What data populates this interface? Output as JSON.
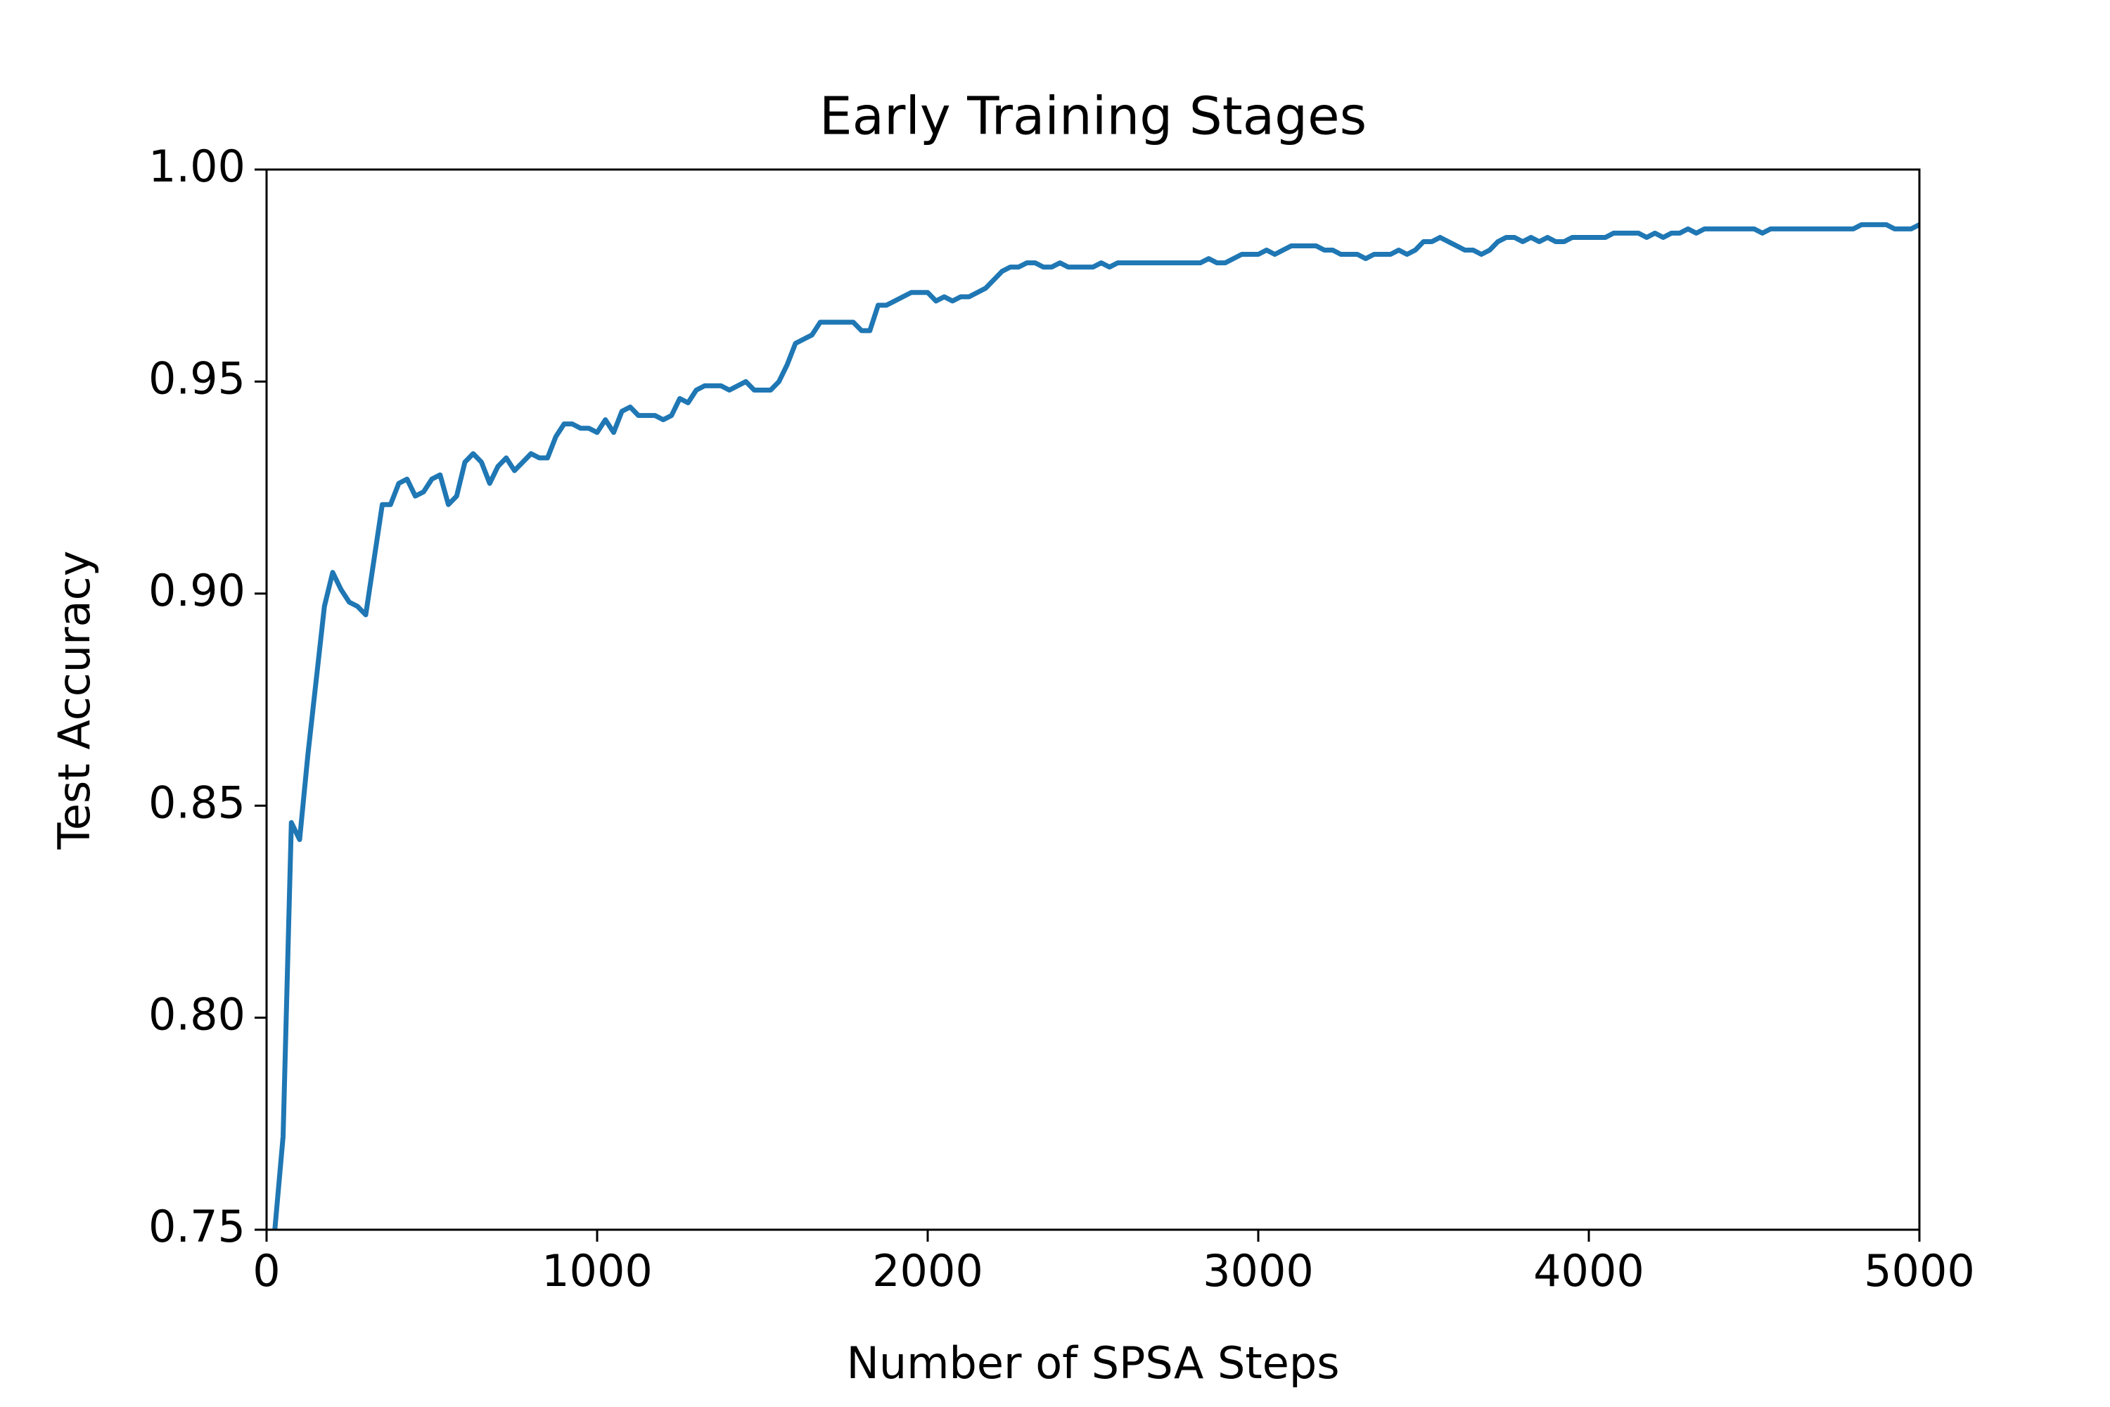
{
  "chart_data": {
    "type": "line",
    "title": "Early Training Stages",
    "x_label": "Number of SPSA Steps",
    "y_label": "Test Accuracy",
    "x": [
      25,
      50,
      75,
      100,
      125,
      175,
      200,
      225,
      250,
      275,
      300,
      350,
      375,
      400,
      425,
      450,
      475,
      500,
      525,
      550,
      575,
      600,
      625,
      650,
      675,
      700,
      725,
      750,
      775,
      800,
      825,
      850,
      875,
      900,
      925,
      950,
      975,
      1000,
      1025,
      1050,
      1075,
      1100,
      1125,
      1150,
      1175,
      1200,
      1225,
      1250,
      1275,
      1300,
      1325,
      1375,
      1400,
      1450,
      1475,
      1525,
      1550,
      1575,
      1600,
      1650,
      1675,
      1775,
      1800,
      1825,
      1850,
      1875,
      1950,
      2000,
      2025,
      2050,
      2075,
      2100,
      2125,
      2175,
      2225,
      2250,
      2275,
      2300,
      2325,
      2350,
      2375,
      2400,
      2425,
      2500,
      2525,
      2550,
      2575,
      2825,
      2850,
      2875,
      2900,
      2950,
      3000,
      3025,
      3050,
      3075,
      3100,
      3150,
      3175,
      3200,
      3225,
      3250,
      3300,
      3325,
      3350,
      3400,
      3425,
      3450,
      3475,
      3500,
      3525,
      3550,
      3575,
      3600,
      3625,
      3650,
      3675,
      3700,
      3725,
      3750,
      3775,
      3800,
      3825,
      3850,
      3875,
      3900,
      3925,
      3950,
      4050,
      4075,
      4150,
      4175,
      4200,
      4225,
      4250,
      4275,
      4300,
      4325,
      4350,
      4500,
      4525,
      4550,
      4800,
      4825,
      4900,
      4925,
      4975,
      5000
    ],
    "series": [
      {
        "name": "Test Accuracy",
        "color": "#1f77b4",
        "values": [
          0.75,
          0.772,
          0.846,
          0.842,
          0.862,
          0.897,
          0.905,
          0.901,
          0.898,
          0.897,
          0.895,
          0.921,
          0.921,
          0.926,
          0.927,
          0.923,
          0.924,
          0.927,
          0.928,
          0.921,
          0.923,
          0.931,
          0.933,
          0.931,
          0.926,
          0.93,
          0.932,
          0.929,
          0.931,
          0.933,
          0.932,
          0.932,
          0.937,
          0.94,
          0.94,
          0.939,
          0.939,
          0.938,
          0.941,
          0.938,
          0.943,
          0.944,
          0.942,
          0.942,
          0.942,
          0.941,
          0.942,
          0.946,
          0.945,
          0.948,
          0.949,
          0.949,
          0.948,
          0.95,
          0.948,
          0.948,
          0.95,
          0.954,
          0.959,
          0.961,
          0.964,
          0.964,
          0.962,
          0.962,
          0.968,
          0.968,
          0.971,
          0.971,
          0.969,
          0.97,
          0.969,
          0.97,
          0.97,
          0.972,
          0.976,
          0.977,
          0.977,
          0.978,
          0.978,
          0.977,
          0.977,
          0.978,
          0.977,
          0.977,
          0.978,
          0.977,
          0.978,
          0.978,
          0.979,
          0.978,
          0.978,
          0.98,
          0.98,
          0.981,
          0.98,
          0.981,
          0.982,
          0.982,
          0.982,
          0.981,
          0.981,
          0.98,
          0.98,
          0.979,
          0.98,
          0.98,
          0.981,
          0.98,
          0.981,
          0.983,
          0.983,
          0.984,
          0.983,
          0.982,
          0.981,
          0.981,
          0.98,
          0.981,
          0.983,
          0.984,
          0.984,
          0.983,
          0.984,
          0.983,
          0.984,
          0.983,
          0.983,
          0.984,
          0.984,
          0.985,
          0.985,
          0.984,
          0.985,
          0.984,
          0.985,
          0.985,
          0.986,
          0.985,
          0.986,
          0.986,
          0.985,
          0.986,
          0.986,
          0.987,
          0.987,
          0.986,
          0.986,
          0.987
        ]
      }
    ],
    "xlim": [
      0,
      5000
    ],
    "xticks": [
      0,
      1000,
      2000,
      3000,
      4000,
      5000
    ],
    "ylim": [
      0.75,
      1.0
    ],
    "yticks": [
      {
        "value": 0.75,
        "label": "0.75"
      },
      {
        "value": 0.8,
        "label": "0.80"
      },
      {
        "value": 0.85,
        "label": "0.85"
      },
      {
        "value": 0.9,
        "label": "0.90"
      },
      {
        "value": 0.95,
        "label": "0.95"
      },
      {
        "value": 1.0,
        "label": "1.00"
      }
    ],
    "grid": false
  }
}
